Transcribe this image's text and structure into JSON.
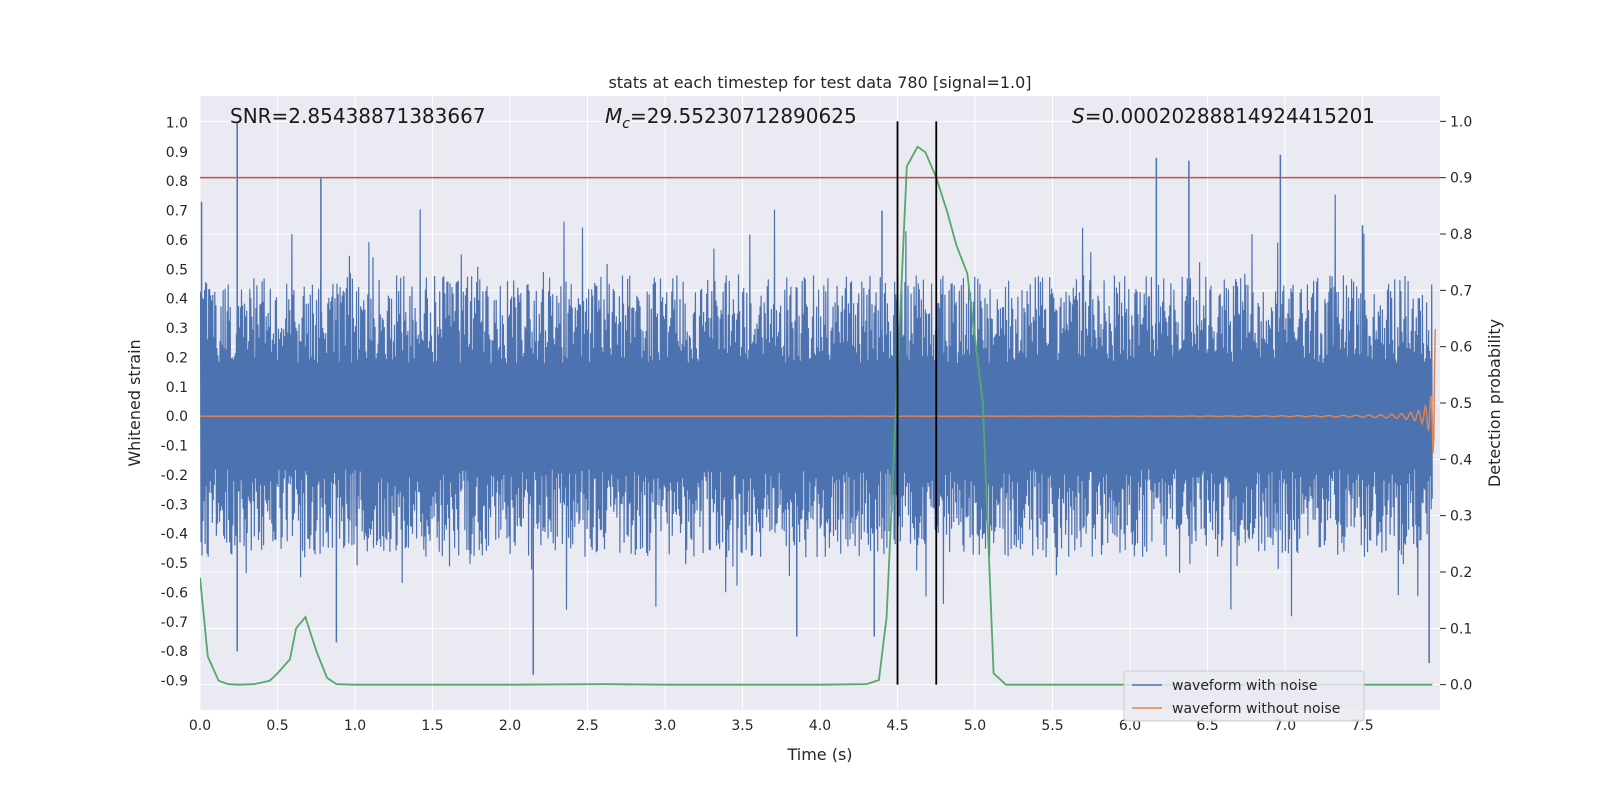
{
  "chart_data": {
    "type": "line",
    "title": "stats at each timestep for test data 780 [signal=1.0]",
    "xlabel": "Time (s)",
    "ylabel": "Whitened strain",
    "ylabel_right": "Detection probability",
    "xlim": [
      0.0,
      8.0
    ],
    "ylim": [
      -1.0,
      1.09
    ],
    "ylim_right": [
      -0.045,
      1.045
    ],
    "x_ticks": [
      "0.0",
      "0.5",
      "1.0",
      "1.5",
      "2.0",
      "2.5",
      "3.0",
      "3.5",
      "4.0",
      "4.5",
      "5.0",
      "5.5",
      "6.0",
      "6.5",
      "7.0",
      "7.5"
    ],
    "y_ticks": [
      "-0.9",
      "-0.8",
      "-0.7",
      "-0.6",
      "-0.5",
      "-0.4",
      "-0.3",
      "-0.2",
      "-0.1",
      "0.0",
      "0.1",
      "0.2",
      "0.3",
      "0.4",
      "0.5",
      "0.6",
      "0.7",
      "0.8",
      "0.9",
      "1.0"
    ],
    "y_ticks_right": [
      "0.0",
      "0.1",
      "0.2",
      "0.3",
      "0.4",
      "0.5",
      "0.6",
      "0.7",
      "0.8",
      "0.9",
      "1.0"
    ],
    "grid": true,
    "annotations": {
      "snr": "SNR=2.85438871383667",
      "mc_symbol": "M",
      "mc_sub": "c",
      "mc_value": "=29.55230712890625",
      "s_symbol": "S",
      "s_value": "=0.00020288814924415201"
    },
    "threshold_right": 0.9,
    "vlines": [
      4.5,
      4.75
    ],
    "series": [
      {
        "name": "waveform with noise",
        "color": "#4c72b0",
        "description_of_values": "dense noise spanning roughly -0.45..0.45 with spikes up to ~1.0 and down to ~-0.9",
        "spikes": [
          [
            0.01,
            0.73
          ],
          [
            0.24,
            1.0
          ],
          [
            0.24,
            -0.8
          ],
          [
            0.78,
            0.81
          ],
          [
            0.88,
            -0.77
          ],
          [
            2.15,
            -0.88
          ],
          [
            4.35,
            -0.75
          ],
          [
            6.17,
            0.88
          ],
          [
            6.38,
            0.87
          ],
          [
            6.97,
            0.89
          ],
          [
            7.5,
            0.65
          ],
          [
            7.93,
            -0.84
          ],
          [
            3.85,
            -0.75
          ],
          [
            4.4,
            0.7
          ]
        ]
      },
      {
        "name": "waveform without noise",
        "color": "#dd8452",
        "description_of_values": "chirp signal near 0 growing in amplitude and frequency to ~0.38 at 7.95 s"
      },
      {
        "name": "detection probability",
        "color": "#55a868",
        "axis": "right",
        "x": [
          0.0,
          0.05,
          0.12,
          0.18,
          0.25,
          0.35,
          0.45,
          0.5,
          0.58,
          0.62,
          0.68,
          0.75,
          0.82,
          0.88,
          1.0,
          2.0,
          2.6,
          3.0,
          4.0,
          4.3,
          4.38,
          4.43,
          4.5,
          4.56,
          4.63,
          4.68,
          4.75,
          4.82,
          4.88,
          4.95,
          5.05,
          5.12,
          5.2,
          6.0,
          7.0,
          7.95
        ],
        "y": [
          0.19,
          0.05,
          0.007,
          0.001,
          0.0,
          0.001,
          0.007,
          0.02,
          0.045,
          0.1,
          0.12,
          0.06,
          0.012,
          0.001,
          0.0,
          0.0,
          0.001,
          0.0,
          0.0,
          0.001,
          0.008,
          0.12,
          0.55,
          0.92,
          0.955,
          0.945,
          0.9,
          0.84,
          0.78,
          0.73,
          0.5,
          0.02,
          0.0,
          0.0,
          0.0,
          0.0
        ]
      }
    ],
    "legend": {
      "placement": "bottom-right",
      "entries": [
        "waveform with noise",
        "waveform without noise"
      ]
    },
    "colors": {
      "axes_bg": "#eaeaf2",
      "grid": "#ffffff",
      "threshold": "#c44e52",
      "vline": "#000000"
    }
  }
}
